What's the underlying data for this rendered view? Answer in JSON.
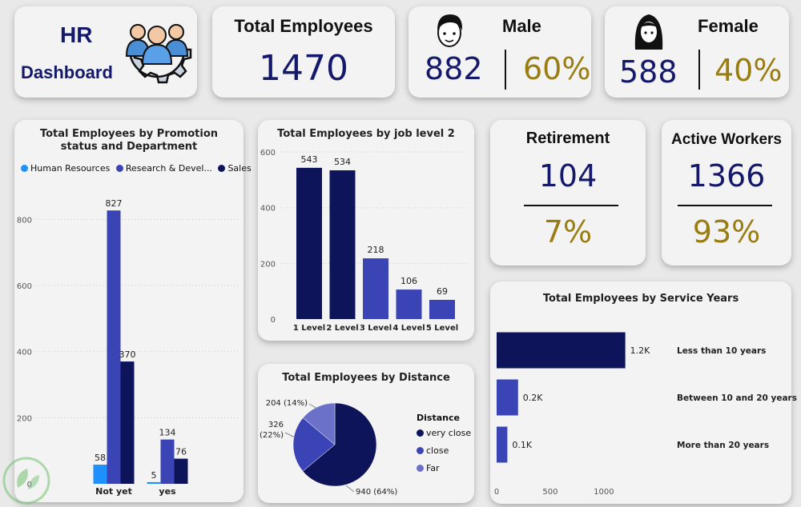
{
  "logo": {
    "line1": "HR",
    "line2": "Dashboard"
  },
  "total": {
    "label": "Total Employees",
    "value": "1470"
  },
  "male": {
    "label": "Male",
    "count": "882",
    "pct": "60%"
  },
  "female": {
    "label": "Female",
    "count": "588",
    "pct": "40%"
  },
  "retirement": {
    "label": "Retirement",
    "count": "104",
    "pct": "7%"
  },
  "active": {
    "label": "Active Workers",
    "count": "1366",
    "pct": "93%"
  },
  "colors": {
    "navy": "#14196b",
    "gold": "#9a7d10",
    "hr": "#1e90ff",
    "rd": "#3a44b5",
    "sales": "#0d1459"
  },
  "chart_data": [
    {
      "type": "bar",
      "title": "Total Employees by Promotion status and Department",
      "categories": [
        "Not yet",
        "yes"
      ],
      "series": [
        {
          "name": "Human Resources",
          "values": [
            58,
            5
          ]
        },
        {
          "name": "Research & Devel...",
          "values": [
            827,
            134
          ]
        },
        {
          "name": "Sales",
          "values": [
            370,
            76
          ]
        }
      ],
      "yticks": [
        "0",
        "200",
        "400",
        "600",
        "800"
      ],
      "ylim": [
        0,
        900
      ],
      "legend": "top"
    },
    {
      "type": "bar",
      "title": "Total Employees by job level 2",
      "categories": [
        "1 Level",
        "2 Level",
        "3 Level",
        "4 Level",
        "5 Level"
      ],
      "values": [
        543,
        534,
        218,
        106,
        69
      ],
      "yticks": [
        "0",
        "200",
        "400",
        "600"
      ],
      "ylim": [
        0,
        600
      ]
    },
    {
      "type": "pie",
      "title": "Total Employees by Distance",
      "legend_title": "Distance",
      "slices": [
        {
          "name": "very close",
          "value": 940,
          "label": "940 (64%)"
        },
        {
          "name": "close",
          "value": 326,
          "label": "326 (22%)"
        },
        {
          "name": "Far",
          "value": 204,
          "label": "204 (14%)"
        }
      ],
      "legend": "right"
    },
    {
      "type": "bar",
      "orientation": "horizontal",
      "title": "Total Employees by Service Years",
      "categories": [
        "Less than 10 years",
        "Between 10 and 20 years",
        "More than 20 years"
      ],
      "values": [
        1200,
        200,
        100
      ],
      "value_labels": [
        "1.2K",
        "0.2K",
        "0.1K"
      ],
      "xticks": [
        "0",
        "500",
        "1000"
      ],
      "xlim": [
        0,
        1300
      ]
    }
  ]
}
